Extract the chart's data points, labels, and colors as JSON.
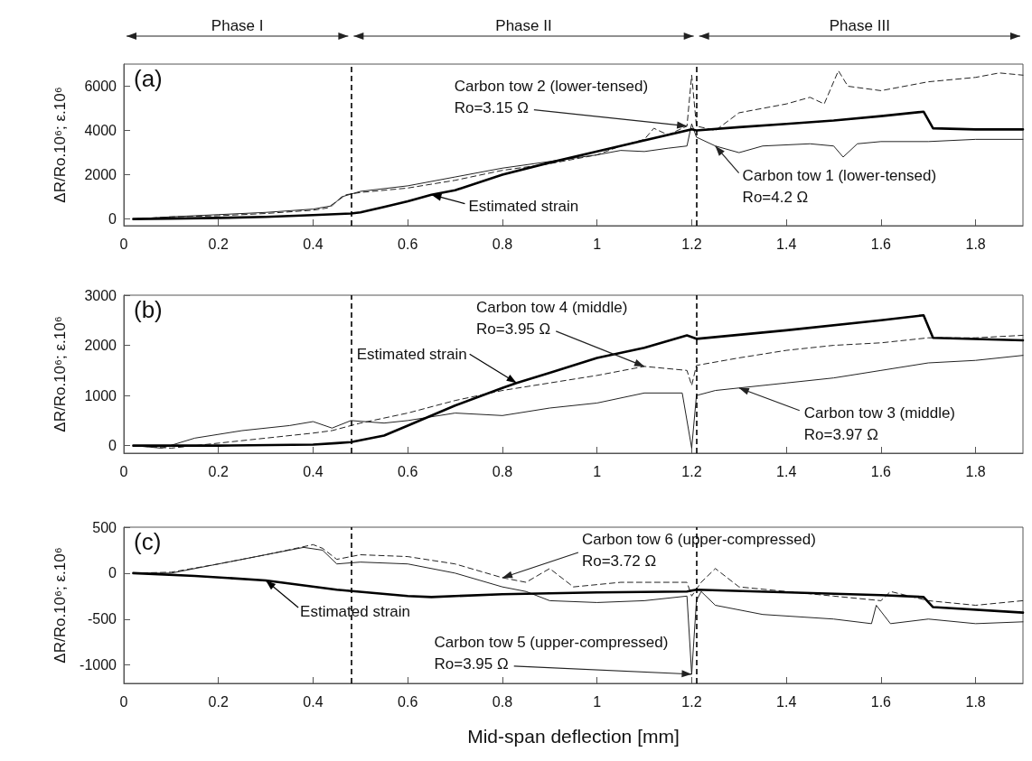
{
  "chart_data": [
    {
      "type": "line",
      "title": "(a)",
      "ylabel": "ΔR/Ro.10⁶; ε.10⁶",
      "xlim": [
        0,
        1.9
      ],
      "xticks": [
        0,
        0.2,
        0.4,
        0.6,
        0.8,
        1,
        1.2,
        1.4,
        1.6,
        1.8
      ],
      "ylim": [
        -300,
        7000
      ],
      "yticks": [
        0,
        2000,
        4000,
        6000
      ],
      "series": [
        {
          "name": "Estimated strain",
          "color": "#000000",
          "line_style": "solid",
          "x": [
            0.02,
            0.1,
            0.2,
            0.3,
            0.4,
            0.48,
            0.5,
            0.55,
            0.6,
            0.65,
            0.7,
            0.8,
            0.9,
            1.0,
            1.1,
            1.2,
            1.21,
            1.3,
            1.4,
            1.5,
            1.6,
            1.69,
            1.71,
            1.8,
            1.9
          ],
          "values": [
            0,
            20,
            50,
            100,
            180,
            250,
            300,
            550,
            800,
            1100,
            1300,
            2000,
            2550,
            3050,
            3550,
            4050,
            4000,
            4150,
            4300,
            4450,
            4650,
            4850,
            4100,
            4050,
            4050
          ]
        },
        {
          "name": "Carbon tow 1 (lower-tensed)",
          "color": "#222222",
          "line_style": "solid",
          "x": [
            0.02,
            0.1,
            0.2,
            0.3,
            0.4,
            0.44,
            0.46,
            0.5,
            0.6,
            0.7,
            0.8,
            0.9,
            1.0,
            1.05,
            1.1,
            1.15,
            1.19,
            1.2,
            1.21,
            1.25,
            1.3,
            1.35,
            1.45,
            1.5,
            1.52,
            1.55,
            1.6,
            1.7,
            1.8,
            1.9
          ],
          "values": [
            0,
            100,
            200,
            300,
            450,
            600,
            1000,
            1250,
            1500,
            1900,
            2300,
            2600,
            2900,
            3100,
            3050,
            3200,
            3300,
            4300,
            3700,
            3300,
            3000,
            3300,
            3400,
            3300,
            2800,
            3400,
            3500,
            3500,
            3600,
            3600
          ]
        },
        {
          "name": "Carbon tow 2 (lower-tensed)",
          "color": "#222222",
          "line_style": "dashed",
          "x": [
            0.02,
            0.1,
            0.2,
            0.3,
            0.4,
            0.43,
            0.47,
            0.5,
            0.6,
            0.7,
            0.8,
            0.9,
            1.0,
            1.05,
            1.1,
            1.12,
            1.15,
            1.19,
            1.2,
            1.21,
            1.25,
            1.3,
            1.4,
            1.45,
            1.48,
            1.51,
            1.53,
            1.6,
            1.7,
            1.8,
            1.85,
            1.9
          ],
          "values": [
            0,
            100,
            150,
            250,
            400,
            500,
            1100,
            1200,
            1400,
            1750,
            2200,
            2500,
            2900,
            3300,
            3600,
            4100,
            3800,
            4200,
            6500,
            4200,
            4000,
            4800,
            5200,
            5500,
            5200,
            6700,
            6000,
            5800,
            6200,
            6400,
            6600,
            6500
          ]
        }
      ],
      "ref_lines": [
        {
          "axis": "x",
          "value": 0.48,
          "color": "#000000",
          "line_style": "dashed"
        },
        {
          "axis": "x",
          "value": 1.21,
          "color": "#000000",
          "line_style": "dashed"
        }
      ],
      "annotations": [
        "Phase I",
        "Phase II",
        "Phase III",
        {
          "text": "Ro=4.2 Ω",
          "x": 1.25,
          "y": 3300
        },
        {
          "text": "Ro=3.15 Ω",
          "x": 1.19,
          "y": 4200
        }
      ]
    },
    {
      "type": "line",
      "title": "(b)",
      "ylabel": "ΔR/Ro.10⁶; ε.10⁶",
      "xlim": [
        0,
        1.9
      ],
      "xticks": [
        0,
        0.2,
        0.4,
        0.6,
        0.8,
        1,
        1.2,
        1.4,
        1.6,
        1.8
      ],
      "ylim": [
        -150,
        3000
      ],
      "yticks": [
        0,
        1000,
        2000,
        3000
      ],
      "series": [
        {
          "name": "Estimated strain",
          "color": "#000000",
          "line_style": "solid",
          "x": [
            0.02,
            0.2,
            0.4,
            0.45,
            0.48,
            0.55,
            0.6,
            0.7,
            0.8,
            0.83,
            0.9,
            1.0,
            1.1,
            1.19,
            1.21,
            1.4,
            1.6,
            1.69,
            1.71,
            1.9
          ],
          "values": [
            0,
            0,
            20,
            50,
            70,
            200,
            400,
            800,
            1150,
            1250,
            1450,
            1750,
            1950,
            2200,
            2130,
            2300,
            2500,
            2600,
            2150,
            2100
          ]
        },
        {
          "name": "Carbon tow 3 (middle)",
          "color": "#222222",
          "line_style": "solid",
          "x": [
            0.02,
            0.08,
            0.15,
            0.25,
            0.35,
            0.4,
            0.44,
            0.48,
            0.55,
            0.6,
            0.7,
            0.8,
            0.9,
            1.0,
            1.1,
            1.18,
            1.2,
            1.21,
            1.25,
            1.3,
            1.4,
            1.5,
            1.6,
            1.7,
            1.8,
            1.9
          ],
          "values": [
            0,
            -50,
            150,
            300,
            400,
            480,
            350,
            500,
            450,
            500,
            650,
            600,
            750,
            850,
            1050,
            1050,
            -50,
            1000,
            1100,
            1150,
            1250,
            1350,
            1500,
            1650,
            1700,
            1800
          ]
        },
        {
          "name": "Carbon tow 4 (middle)",
          "color": "#222222",
          "line_style": "dashed",
          "x": [
            0.02,
            0.1,
            0.2,
            0.3,
            0.4,
            0.44,
            0.5,
            0.6,
            0.7,
            0.8,
            0.9,
            1.0,
            1.1,
            1.19,
            1.2,
            1.21,
            1.3,
            1.4,
            1.5,
            1.6,
            1.7,
            1.8,
            1.9
          ],
          "values": [
            0,
            -50,
            50,
            150,
            250,
            300,
            450,
            650,
            900,
            1100,
            1250,
            1400,
            1580,
            1500,
            1200,
            1600,
            1750,
            1900,
            2000,
            2050,
            2150,
            2150,
            2200
          ]
        }
      ],
      "ref_lines": [
        {
          "axis": "x",
          "value": 0.48,
          "color": "#000000",
          "line_style": "dashed"
        },
        {
          "axis": "x",
          "value": 1.21,
          "color": "#000000",
          "line_style": "dashed"
        }
      ],
      "annotations": [
        {
          "text": "Ro=3.97 Ω",
          "x": 1.3,
          "y": 1150
        },
        {
          "text": "Ro=3.95 Ω",
          "x": 1.1,
          "y": 1580
        }
      ]
    },
    {
      "type": "line",
      "title": "(c)",
      "xlabel": "Mid-span deflection [mm]",
      "ylabel": "ΔR/Ro.10⁶; ε.10⁶",
      "xlim": [
        0,
        1.9
      ],
      "xticks": [
        0,
        0.2,
        0.4,
        0.6,
        0.8,
        1,
        1.2,
        1.4,
        1.6,
        1.8
      ],
      "ylim": [
        -1200,
        500
      ],
      "yticks": [
        -1000,
        -500,
        0,
        500
      ],
      "series": [
        {
          "name": "Estimated strain",
          "color": "#000000",
          "line_style": "solid",
          "x": [
            0.02,
            0.15,
            0.3,
            0.45,
            0.6,
            0.65,
            0.8,
            1.0,
            1.19,
            1.21,
            1.6,
            1.69,
            1.71,
            1.9
          ],
          "values": [
            0,
            -30,
            -80,
            -180,
            -250,
            -260,
            -230,
            -210,
            -200,
            -180,
            -240,
            -260,
            -370,
            -430
          ]
        },
        {
          "name": "Carbon tow 5 (upper-compressed)",
          "color": "#222222",
          "line_style": "solid",
          "x": [
            0.02,
            0.1,
            0.2,
            0.3,
            0.38,
            0.42,
            0.45,
            0.5,
            0.6,
            0.7,
            0.8,
            0.85,
            0.9,
            1.0,
            1.1,
            1.19,
            1.2,
            1.21,
            1.22,
            1.25,
            1.35,
            1.5,
            1.58,
            1.59,
            1.62,
            1.7,
            1.8,
            1.9
          ],
          "values": [
            0,
            0,
            100,
            200,
            280,
            250,
            100,
            120,
            100,
            0,
            -150,
            -200,
            -300,
            -320,
            -300,
            -250,
            -1100,
            -300,
            -200,
            -350,
            -450,
            -500,
            -550,
            -350,
            -550,
            -500,
            -550,
            -530
          ]
        },
        {
          "name": "Carbon tow 6 (upper-compressed)",
          "color": "#222222",
          "line_style": "dashed",
          "x": [
            0.02,
            0.1,
            0.2,
            0.3,
            0.4,
            0.42,
            0.45,
            0.5,
            0.6,
            0.7,
            0.8,
            0.85,
            0.9,
            0.95,
            1.05,
            1.19,
            1.2,
            1.22,
            1.25,
            1.3,
            1.4,
            1.5,
            1.6,
            1.62,
            1.7,
            1.8,
            1.9
          ],
          "values": [
            0,
            10,
            100,
            200,
            310,
            270,
            150,
            200,
            180,
            100,
            -50,
            -100,
            50,
            -150,
            -100,
            -100,
            -250,
            -100,
            50,
            -150,
            -200,
            -250,
            -300,
            -200,
            -300,
            -350,
            -300
          ]
        }
      ],
      "ref_lines": [
        {
          "axis": "x",
          "value": 0.48,
          "color": "#000000",
          "line_style": "dashed"
        },
        {
          "axis": "x",
          "value": 1.21,
          "color": "#000000",
          "line_style": "dashed"
        }
      ],
      "annotations": [
        {
          "text": "Ro=3.95 Ω",
          "x": 1.2,
          "y": -1100
        },
        {
          "text": "Ro=3.72 Ω",
          "x": 0.8,
          "y": -50
        }
      ]
    }
  ]
}
